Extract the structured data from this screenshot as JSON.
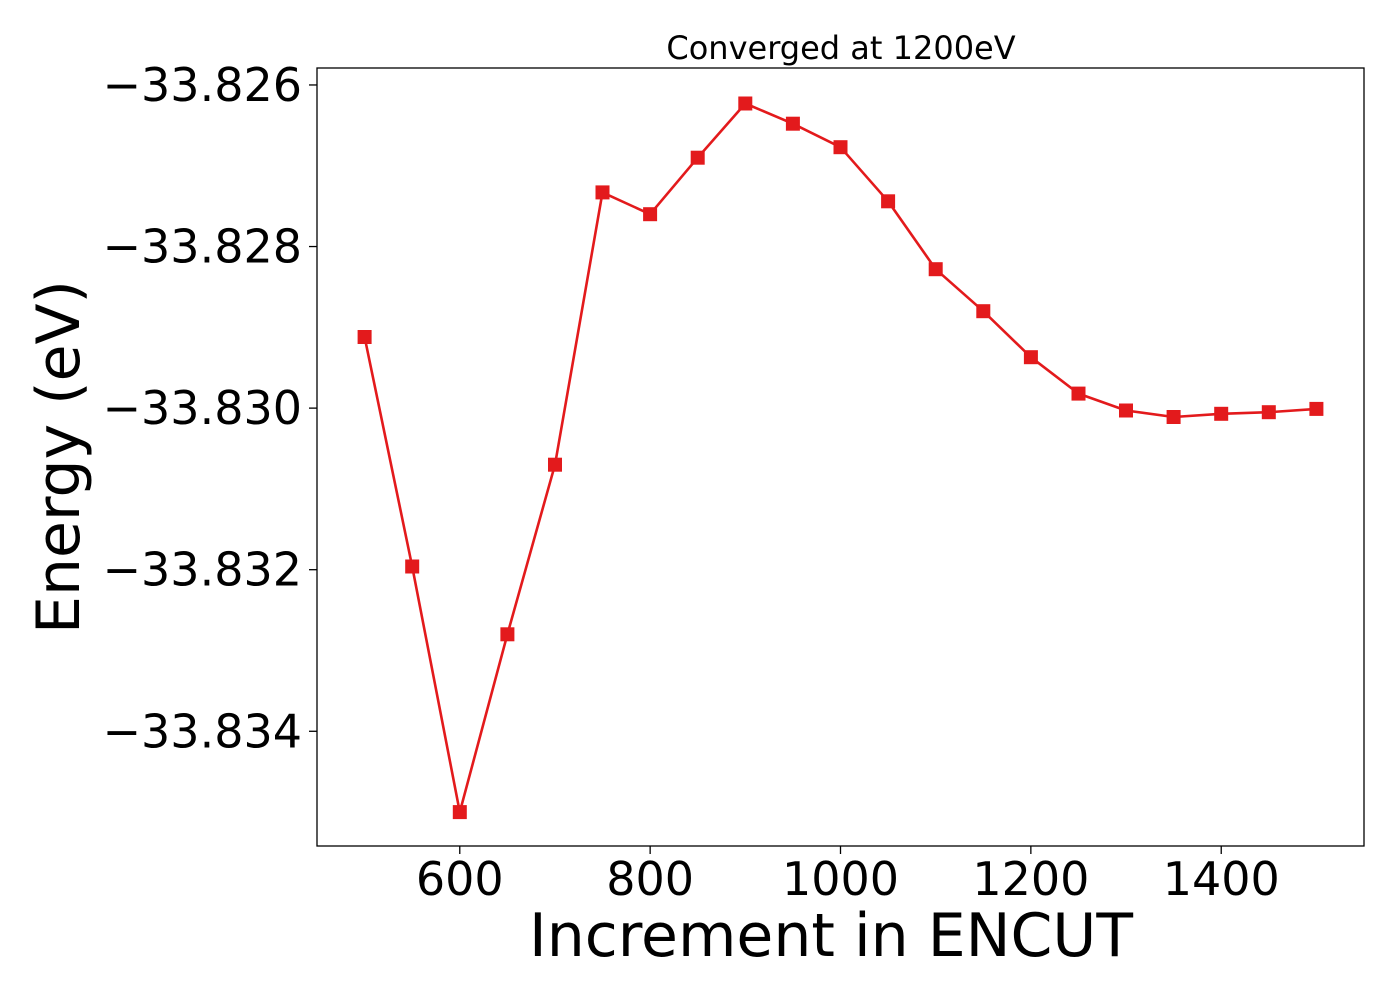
{
  "chart_data": {
    "type": "line",
    "title": "Converged at 1200eV",
    "xlabel": "Increment in ENCUT",
    "ylabel": "Energy (eV)",
    "x": [
      500,
      550,
      600,
      650,
      700,
      750,
      800,
      850,
      900,
      950,
      1000,
      1050,
      1100,
      1150,
      1200,
      1250,
      1300,
      1350,
      1400,
      1450,
      1500
    ],
    "series": [
      {
        "values": [
          -33.82912,
          -33.83196,
          -33.835,
          -33.8328,
          -33.8307,
          -33.82733,
          -33.8276,
          -33.8269,
          -33.82623,
          -33.82648,
          -33.82677,
          -33.82744,
          -33.82828,
          -33.8288,
          -33.82937,
          -33.82982,
          -33.83003,
          -33.83011,
          -33.83007,
          -33.83005,
          -33.83001
        ],
        "color": "#e31a1c",
        "marker": "square"
      }
    ],
    "xlim": [
      450,
      1550
    ],
    "ylim": [
      -33.83542,
      -33.82579
    ],
    "xticks": [
      600,
      800,
      1000,
      1200,
      1400
    ],
    "xtick_labels": [
      "600",
      "800",
      "1000",
      "1200",
      "1400"
    ],
    "yticks": [
      -33.834,
      -33.832,
      -33.83,
      -33.828,
      -33.826
    ],
    "ytick_labels": [
      "−33.834",
      "−33.832",
      "−33.830",
      "−33.828",
      "−33.826"
    ],
    "grid": false,
    "legend": "none"
  }
}
